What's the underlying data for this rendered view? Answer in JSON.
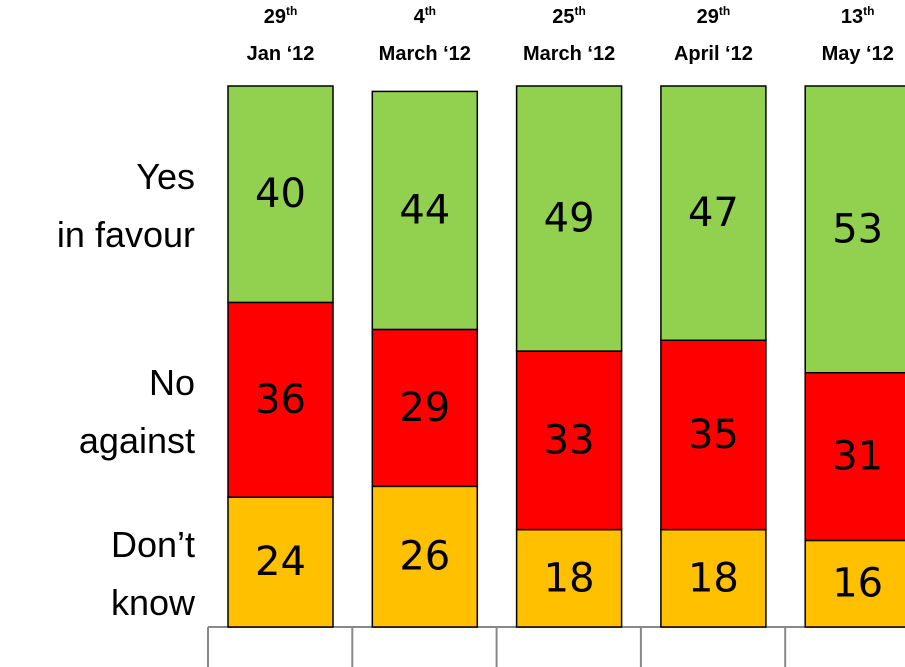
{
  "chart_data": {
    "type": "stacked_bar",
    "categories": [
      "29th Jan ‘12",
      "4th March ‘12",
      "25th March ‘12",
      "29th April ‘12",
      "13th May ‘12"
    ],
    "series": [
      {
        "name": "Don’t know",
        "color": "#ffc000",
        "values": [
          24,
          26,
          18,
          18,
          16
        ]
      },
      {
        "name": "No against",
        "color": "#ff0000",
        "values": [
          36,
          29,
          33,
          35,
          31
        ]
      },
      {
        "name": "Yes in favour",
        "color": "#92d050",
        "values": [
          40,
          44,
          49,
          47,
          53
        ]
      }
    ],
    "ylim": [
      0,
      100
    ]
  }
}
